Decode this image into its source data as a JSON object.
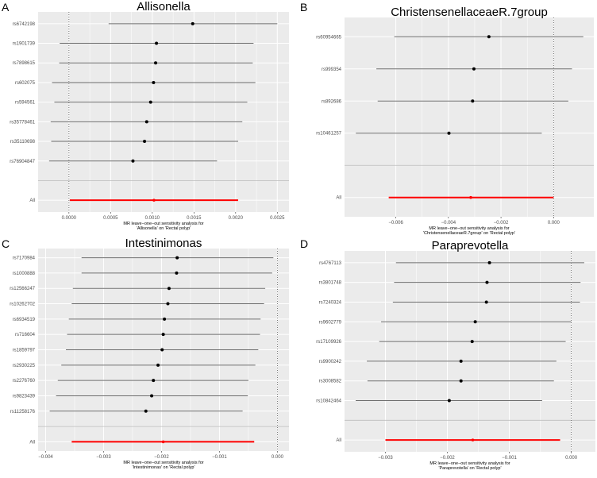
{
  "chart_data": [
    {
      "type": "forest",
      "panel_label": "A",
      "title": "Allisonella",
      "caption": [
        "MR leave−one−out sensitivity analysis for",
        "'Allisonella' on 'Rectal polyp'"
      ],
      "xlim": [
        -0.00037,
        0.00264
      ],
      "xticks": [
        0,
        0.0005,
        0.001,
        0.0015,
        0.002,
        0.0025
      ],
      "xtick_labels": [
        "0.0000",
        "0.0005",
        "0.0010",
        "0.0015",
        "0.0020",
        "0.0025"
      ],
      "snps": [
        {
          "label": "rs6742198",
          "b": 0.001485,
          "lo": 0.000476,
          "hi": 0.0025
        },
        {
          "label": "rs1901739",
          "b": 0.00105,
          "lo": -0.000111,
          "hi": 0.002215
        },
        {
          "label": "rs7898615",
          "b": 0.00104,
          "lo": -0.000117,
          "hi": 0.002205
        },
        {
          "label": "rs602075",
          "b": 0.001015,
          "lo": -0.000203,
          "hi": 0.002237
        },
        {
          "label": "rs594561",
          "b": 0.00098,
          "lo": -0.000175,
          "hi": 0.00214
        },
        {
          "label": "rs35778461",
          "b": 0.000933,
          "lo": -0.000219,
          "hi": 0.00208
        },
        {
          "label": "rs35110698",
          "b": 0.000907,
          "lo": -0.000213,
          "hi": 0.00203
        },
        {
          "label": "rs76904847",
          "b": 0.000768,
          "lo": -0.000238,
          "hi": 0.001777
        }
      ],
      "all": {
        "label": "All",
        "b": 0.00102,
        "lo": 1e-05,
        "hi": 0.00203
      }
    },
    {
      "type": "forest",
      "panel_label": "B",
      "title": "ChristensenellaceaeR.7group",
      "caption": [
        "MR leave−one−out sensitivity analysis for",
        "'ChristensenellaceaeR.7group' on 'Rectal polyp'"
      ],
      "xlim": [
        -0.00795,
        0.00153
      ],
      "xticks": [
        -0.006,
        -0.004,
        -0.002,
        0
      ],
      "xtick_labels": [
        "−0.006",
        "−0.004",
        "−0.002",
        "0.000"
      ],
      "snps": [
        {
          "label": "rs60954665",
          "b": -0.00246,
          "lo": -0.00606,
          "hi": 0.00113
        },
        {
          "label": "rs999354",
          "b": -0.00303,
          "lo": -0.00674,
          "hi": 0.0007
        },
        {
          "label": "rs892686",
          "b": -0.00308,
          "lo": -0.00669,
          "hi": 0.00056
        },
        {
          "label": "rs10461257",
          "b": -0.00398,
          "lo": -0.00752,
          "hi": -0.00045
        }
      ],
      "all": {
        "label": "All",
        "b": -0.00315,
        "lo": -0.00627,
        "hi": 0.0
      }
    },
    {
      "type": "forest",
      "panel_label": "C",
      "title": "Intestinimonas",
      "caption": [
        "MR leave−one−out sensitivity analysis for",
        "'Intestinimonas' on 'Rectal polyp'"
      ],
      "xlim": [
        -0.00413,
        0.0002
      ],
      "xticks": [
        -0.004,
        -0.003,
        -0.002,
        -0.001,
        0
      ],
      "xtick_labels": [
        "−0.004",
        "−0.003",
        "−0.002",
        "−0.001",
        "0.000"
      ],
      "snps": [
        {
          "label": "rs7170984",
          "b": -0.00173,
          "lo": -0.00338,
          "hi": -7e-05
        },
        {
          "label": "rs1000888",
          "b": -0.00174,
          "lo": -0.00338,
          "hi": -9e-05
        },
        {
          "label": "rs12566247",
          "b": -0.00187,
          "lo": -0.00353,
          "hi": -0.00021
        },
        {
          "label": "rs10262702",
          "b": -0.00189,
          "lo": -0.00355,
          "hi": -0.00023
        },
        {
          "label": "rs6934519",
          "b": -0.00195,
          "lo": -0.0036,
          "hi": -0.00029
        },
        {
          "label": "rs716604",
          "b": -0.00197,
          "lo": -0.00363,
          "hi": -0.0003
        },
        {
          "label": "rs1859797",
          "b": -0.00199,
          "lo": -0.00365,
          "hi": -0.00033
        },
        {
          "label": "rs2930225",
          "b": -0.00206,
          "lo": -0.00373,
          "hi": -0.00038
        },
        {
          "label": "rs2276760",
          "b": -0.00214,
          "lo": -0.00379,
          "hi": -0.0005
        },
        {
          "label": "rs9823439",
          "b": -0.00217,
          "lo": -0.00382,
          "hi": -0.00051
        },
        {
          "label": "rs11258176",
          "b": -0.00227,
          "lo": -0.00393,
          "hi": -0.0006
        }
      ],
      "all": {
        "label": "All",
        "b": -0.00197,
        "lo": -0.00355,
        "hi": -0.0004
      }
    },
    {
      "type": "forest",
      "panel_label": "D",
      "title": "Paraprevotella",
      "caption": [
        "MR leave−one−out sensitivity analysis for",
        "'Paraprevotella' on 'Rectal polyp'"
      ],
      "xlim": [
        -0.00366,
        0.00039
      ],
      "xticks": [
        -0.003,
        -0.002,
        -0.001,
        0
      ],
      "xtick_labels": [
        "−0.003",
        "−0.002",
        "−0.001",
        "0.000"
      ],
      "snps": [
        {
          "label": "rs4767113",
          "b": -0.00132,
          "lo": -0.00283,
          "hi": 0.00021
        },
        {
          "label": "rs3801748",
          "b": -0.00136,
          "lo": -0.00286,
          "hi": 0.00015
        },
        {
          "label": "rs7240324",
          "b": -0.00137,
          "lo": -0.00288,
          "hi": 0.00014
        },
        {
          "label": "rs9602779",
          "b": -0.00155,
          "lo": -0.00307,
          "hi": 0.0
        },
        {
          "label": "rs17109926",
          "b": -0.0016,
          "lo": -0.0031,
          "hi": -9e-05
        },
        {
          "label": "rs9900242",
          "b": -0.00178,
          "lo": -0.0033,
          "hi": -0.00024
        },
        {
          "label": "rs3008582",
          "b": -0.00178,
          "lo": -0.00329,
          "hi": -0.00028
        },
        {
          "label": "rs10842464",
          "b": -0.00197,
          "lo": -0.00348,
          "hi": -0.00047
        }
      ],
      "all": {
        "label": "All",
        "b": -0.00159,
        "lo": -0.003,
        "hi": -0.00018
      }
    }
  ],
  "colors": {
    "panel_bg": "#ebebeb",
    "grid": "#ffffff",
    "snp_line": "#6e6e6e",
    "point": "#000000",
    "all_line": "#ff0000",
    "separator": "#bdbdbd"
  }
}
